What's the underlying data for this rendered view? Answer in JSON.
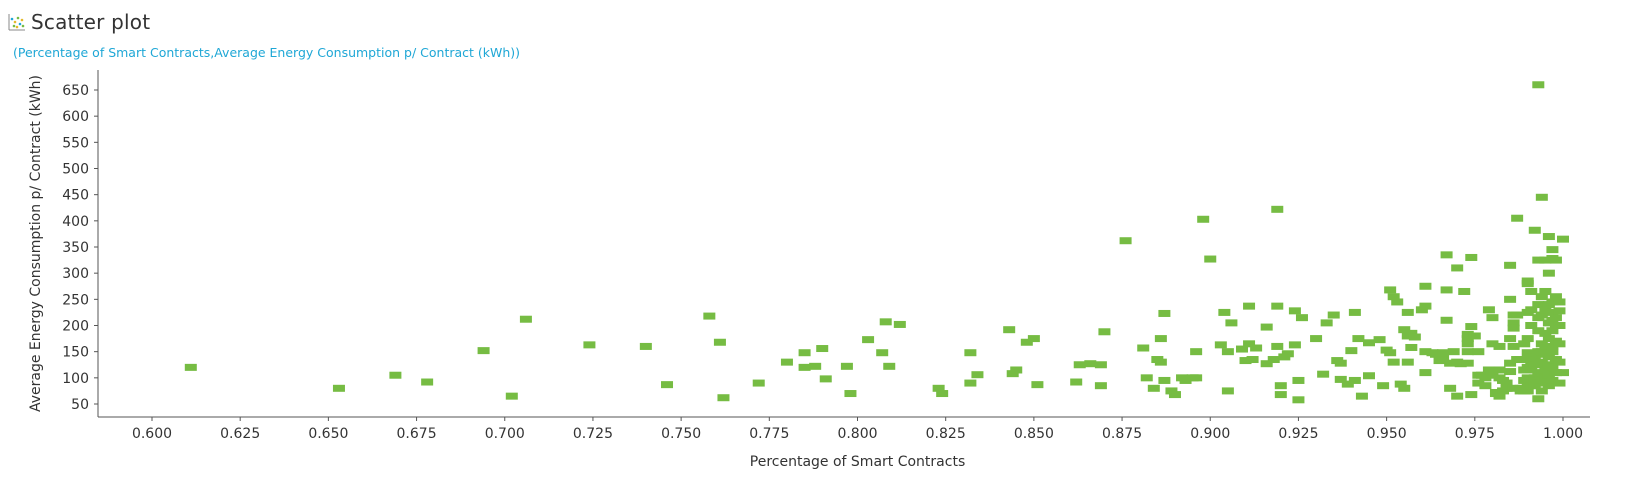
{
  "header": {
    "title": "Scatter plot",
    "icon": "scatter-plot-icon"
  },
  "subtitle": "(Percentage of Smart Contracts,Average Energy Consumption p/ Contract (kWh))",
  "chart_data": {
    "type": "scatter",
    "title": "Scatter plot",
    "xlabel": "Percentage of Smart Contracts",
    "ylabel": "Average Energy Consumption p/ Contract (kWh)",
    "xlim": [
      0.59,
      1.02
    ],
    "ylim": [
      30,
      680
    ],
    "x_ticks": [
      0.6,
      0.625,
      0.65,
      0.675,
      0.7,
      0.725,
      0.75,
      0.775,
      0.8,
      0.825,
      0.85,
      0.875,
      0.9,
      0.925,
      0.95,
      0.975,
      1.0
    ],
    "x_tick_labels": [
      "0.600",
      "0.625",
      "0.650",
      "0.675",
      "0.700",
      "0.725",
      "0.750",
      "0.775",
      "0.800",
      "0.825",
      "0.850",
      "0.875",
      "0.900",
      "0.925",
      "0.950",
      "0.975",
      "1.000"
    ],
    "y_ticks": [
      50,
      100,
      150,
      200,
      250,
      300,
      350,
      400,
      450,
      500,
      550,
      600,
      650
    ],
    "y_tick_labels": [
      "50",
      "100",
      "150",
      "200",
      "250",
      "300",
      "350",
      "400",
      "450",
      "500",
      "550",
      "600",
      "650"
    ],
    "grid": false,
    "marker_color": "#76bc43",
    "points": [
      [
        0.611,
        120
      ],
      [
        0.653,
        80
      ],
      [
        0.669,
        105
      ],
      [
        0.678,
        92
      ],
      [
        0.694,
        152
      ],
      [
        0.702,
        65
      ],
      [
        0.706,
        212
      ],
      [
        0.724,
        163
      ],
      [
        0.74,
        160
      ],
      [
        0.746,
        87
      ],
      [
        0.758,
        218
      ],
      [
        0.761,
        168
      ],
      [
        0.762,
        62
      ],
      [
        0.772,
        90
      ],
      [
        0.78,
        130
      ],
      [
        0.785,
        148
      ],
      [
        0.785,
        120
      ],
      [
        0.788,
        122
      ],
      [
        0.79,
        156
      ],
      [
        0.791,
        98
      ],
      [
        0.797,
        122
      ],
      [
        0.798,
        70
      ],
      [
        0.803,
        173
      ],
      [
        0.807,
        148
      ],
      [
        0.808,
        207
      ],
      [
        0.809,
        122
      ],
      [
        0.812,
        202
      ],
      [
        0.823,
        80
      ],
      [
        0.824,
        70
      ],
      [
        0.832,
        148
      ],
      [
        0.832,
        90
      ],
      [
        0.834,
        106
      ],
      [
        0.843,
        192
      ],
      [
        0.844,
        108
      ],
      [
        0.845,
        115
      ],
      [
        0.848,
        168
      ],
      [
        0.85,
        175
      ],
      [
        0.851,
        87
      ],
      [
        0.862,
        92
      ],
      [
        0.863,
        125
      ],
      [
        0.866,
        127
      ],
      [
        0.869,
        125
      ],
      [
        0.869,
        85
      ],
      [
        0.87,
        188
      ],
      [
        0.876,
        362
      ],
      [
        0.881,
        157
      ],
      [
        0.882,
        100
      ],
      [
        0.884,
        80
      ],
      [
        0.885,
        135
      ],
      [
        0.886,
        130
      ],
      [
        0.886,
        175
      ],
      [
        0.887,
        223
      ],
      [
        0.887,
        95
      ],
      [
        0.889,
        75
      ],
      [
        0.89,
        68
      ],
      [
        0.892,
        100
      ],
      [
        0.893,
        95
      ],
      [
        0.895,
        100
      ],
      [
        0.896,
        150
      ],
      [
        0.896,
        100
      ],
      [
        0.898,
        403
      ],
      [
        0.9,
        327
      ],
      [
        0.903,
        163
      ],
      [
        0.904,
        225
      ],
      [
        0.905,
        75
      ],
      [
        0.905,
        150
      ],
      [
        0.906,
        205
      ],
      [
        0.909,
        155
      ],
      [
        0.91,
        133
      ],
      [
        0.911,
        237
      ],
      [
        0.911,
        165
      ],
      [
        0.912,
        135
      ],
      [
        0.913,
        157
      ],
      [
        0.916,
        197
      ],
      [
        0.916,
        127
      ],
      [
        0.918,
        135
      ],
      [
        0.919,
        422
      ],
      [
        0.919,
        237
      ],
      [
        0.919,
        160
      ],
      [
        0.92,
        85
      ],
      [
        0.92,
        68
      ],
      [
        0.921,
        140
      ],
      [
        0.922,
        146
      ],
      [
        0.924,
        228
      ],
      [
        0.924,
        163
      ],
      [
        0.925,
        95
      ],
      [
        0.925,
        58
      ],
      [
        0.926,
        215
      ],
      [
        0.93,
        175
      ],
      [
        0.932,
        107
      ],
      [
        0.933,
        205
      ],
      [
        0.935,
        220
      ],
      [
        0.936,
        133
      ],
      [
        0.937,
        128
      ],
      [
        0.937,
        97
      ],
      [
        0.939,
        88
      ],
      [
        0.94,
        152
      ],
      [
        0.941,
        225
      ],
      [
        0.941,
        95
      ],
      [
        0.942,
        175
      ],
      [
        0.943,
        65
      ],
      [
        0.945,
        167
      ],
      [
        0.945,
        104
      ],
      [
        0.948,
        173
      ],
      [
        0.949,
        85
      ],
      [
        0.95,
        153
      ],
      [
        0.951,
        268
      ],
      [
        0.951,
        148
      ],
      [
        0.952,
        255
      ],
      [
        0.952,
        130
      ],
      [
        0.953,
        245
      ],
      [
        0.954,
        88
      ],
      [
        0.955,
        80
      ],
      [
        0.955,
        192
      ],
      [
        0.956,
        225
      ],
      [
        0.956,
        180
      ],
      [
        0.956,
        130
      ],
      [
        0.957,
        185
      ],
      [
        0.957,
        158
      ],
      [
        0.958,
        178
      ],
      [
        0.96,
        230
      ],
      [
        0.961,
        237
      ],
      [
        0.961,
        275
      ],
      [
        0.961,
        150
      ],
      [
        0.961,
        110
      ],
      [
        0.963,
        148
      ],
      [
        0.964,
        145
      ],
      [
        0.965,
        133
      ],
      [
        0.966,
        140
      ],
      [
        0.966,
        148
      ],
      [
        0.967,
        210
      ],
      [
        0.967,
        335
      ],
      [
        0.967,
        268
      ],
      [
        0.968,
        128
      ],
      [
        0.968,
        80
      ],
      [
        0.969,
        150
      ],
      [
        0.97,
        130
      ],
      [
        0.97,
        310
      ],
      [
        0.97,
        65
      ],
      [
        0.971,
        127
      ],
      [
        0.972,
        265
      ],
      [
        0.973,
        183
      ],
      [
        0.973,
        175
      ],
      [
        0.973,
        165
      ],
      [
        0.973,
        150
      ],
      [
        0.973,
        128
      ],
      [
        0.974,
        330
      ],
      [
        0.974,
        198
      ],
      [
        0.974,
        68
      ],
      [
        0.975,
        180
      ],
      [
        0.976,
        150
      ],
      [
        0.976,
        105
      ],
      [
        0.976,
        90
      ],
      [
        0.977,
        105
      ],
      [
        0.978,
        100
      ],
      [
        0.978,
        85
      ],
      [
        0.979,
        115
      ],
      [
        0.979,
        230
      ],
      [
        0.98,
        215
      ],
      [
        0.98,
        165
      ],
      [
        0.98,
        105
      ],
      [
        0.981,
        72
      ],
      [
        0.981,
        70
      ],
      [
        0.982,
        160
      ],
      [
        0.982,
        115
      ],
      [
        0.982,
        100
      ],
      [
        0.982,
        65
      ],
      [
        0.983,
        95
      ],
      [
        0.983,
        75
      ],
      [
        0.984,
        90
      ],
      [
        0.984,
        80
      ],
      [
        0.985,
        315
      ],
      [
        0.985,
        250
      ],
      [
        0.985,
        175
      ],
      [
        0.985,
        128
      ],
      [
        0.985,
        112
      ],
      [
        0.986,
        220
      ],
      [
        0.986,
        205
      ],
      [
        0.986,
        195
      ],
      [
        0.986,
        160
      ],
      [
        0.986,
        80
      ],
      [
        0.987,
        405
      ],
      [
        0.987,
        220
      ],
      [
        0.987,
        135
      ],
      [
        0.988,
        135
      ],
      [
        0.988,
        80
      ],
      [
        0.988,
        75
      ],
      [
        0.989,
        165
      ],
      [
        0.989,
        115
      ],
      [
        0.989,
        95
      ],
      [
        0.989,
        75
      ],
      [
        0.99,
        285
      ],
      [
        0.99,
        280
      ],
      [
        0.99,
        225
      ],
      [
        0.99,
        175
      ],
      [
        0.99,
        148
      ],
      [
        0.99,
        120
      ],
      [
        0.99,
        100
      ],
      [
        0.99,
        90
      ],
      [
        0.99,
        75
      ],
      [
        0.991,
        265
      ],
      [
        0.991,
        230
      ],
      [
        0.991,
        200
      ],
      [
        0.991,
        140
      ],
      [
        0.991,
        130
      ],
      [
        0.991,
        115
      ],
      [
        0.991,
        85
      ],
      [
        0.992,
        382
      ],
      [
        0.992,
        135
      ],
      [
        0.992,
        125
      ],
      [
        0.992,
        100
      ],
      [
        0.992,
        85
      ],
      [
        0.993,
        660
      ],
      [
        0.993,
        325
      ],
      [
        0.993,
        240
      ],
      [
        0.993,
        215
      ],
      [
        0.993,
        190
      ],
      [
        0.993,
        150
      ],
      [
        0.993,
        145
      ],
      [
        0.993,
        128
      ],
      [
        0.993,
        110
      ],
      [
        0.993,
        90
      ],
      [
        0.993,
        60
      ],
      [
        0.994,
        445
      ],
      [
        0.994,
        255
      ],
      [
        0.994,
        220
      ],
      [
        0.994,
        165
      ],
      [
        0.994,
        150
      ],
      [
        0.994,
        130
      ],
      [
        0.994,
        95
      ],
      [
        0.994,
        75
      ],
      [
        0.995,
        325
      ],
      [
        0.995,
        265
      ],
      [
        0.995,
        230
      ],
      [
        0.995,
        185
      ],
      [
        0.995,
        160
      ],
      [
        0.995,
        115
      ],
      [
        0.995,
        100
      ],
      [
        0.996,
        370
      ],
      [
        0.996,
        300
      ],
      [
        0.996,
        240
      ],
      [
        0.996,
        205
      ],
      [
        0.996,
        175
      ],
      [
        0.996,
        140
      ],
      [
        0.996,
        125
      ],
      [
        0.996,
        105
      ],
      [
        0.996,
        85
      ],
      [
        0.997,
        345
      ],
      [
        0.997,
        328
      ],
      [
        0.997,
        245
      ],
      [
        0.997,
        225
      ],
      [
        0.997,
        210
      ],
      [
        0.997,
        190
      ],
      [
        0.997,
        160
      ],
      [
        0.997,
        150
      ],
      [
        0.997,
        120
      ],
      [
        0.997,
        95
      ],
      [
        0.998,
        325
      ],
      [
        0.998,
        255
      ],
      [
        0.998,
        215
      ],
      [
        0.998,
        200
      ],
      [
        0.998,
        170
      ],
      [
        0.998,
        135
      ],
      [
        0.998,
        110
      ],
      [
        0.999,
        245
      ],
      [
        0.999,
        228
      ],
      [
        0.999,
        200
      ],
      [
        0.999,
        165
      ],
      [
        0.999,
        130
      ],
      [
        0.999,
        90
      ],
      [
        1.0,
        365
      ],
      [
        1.0,
        110
      ]
    ]
  }
}
